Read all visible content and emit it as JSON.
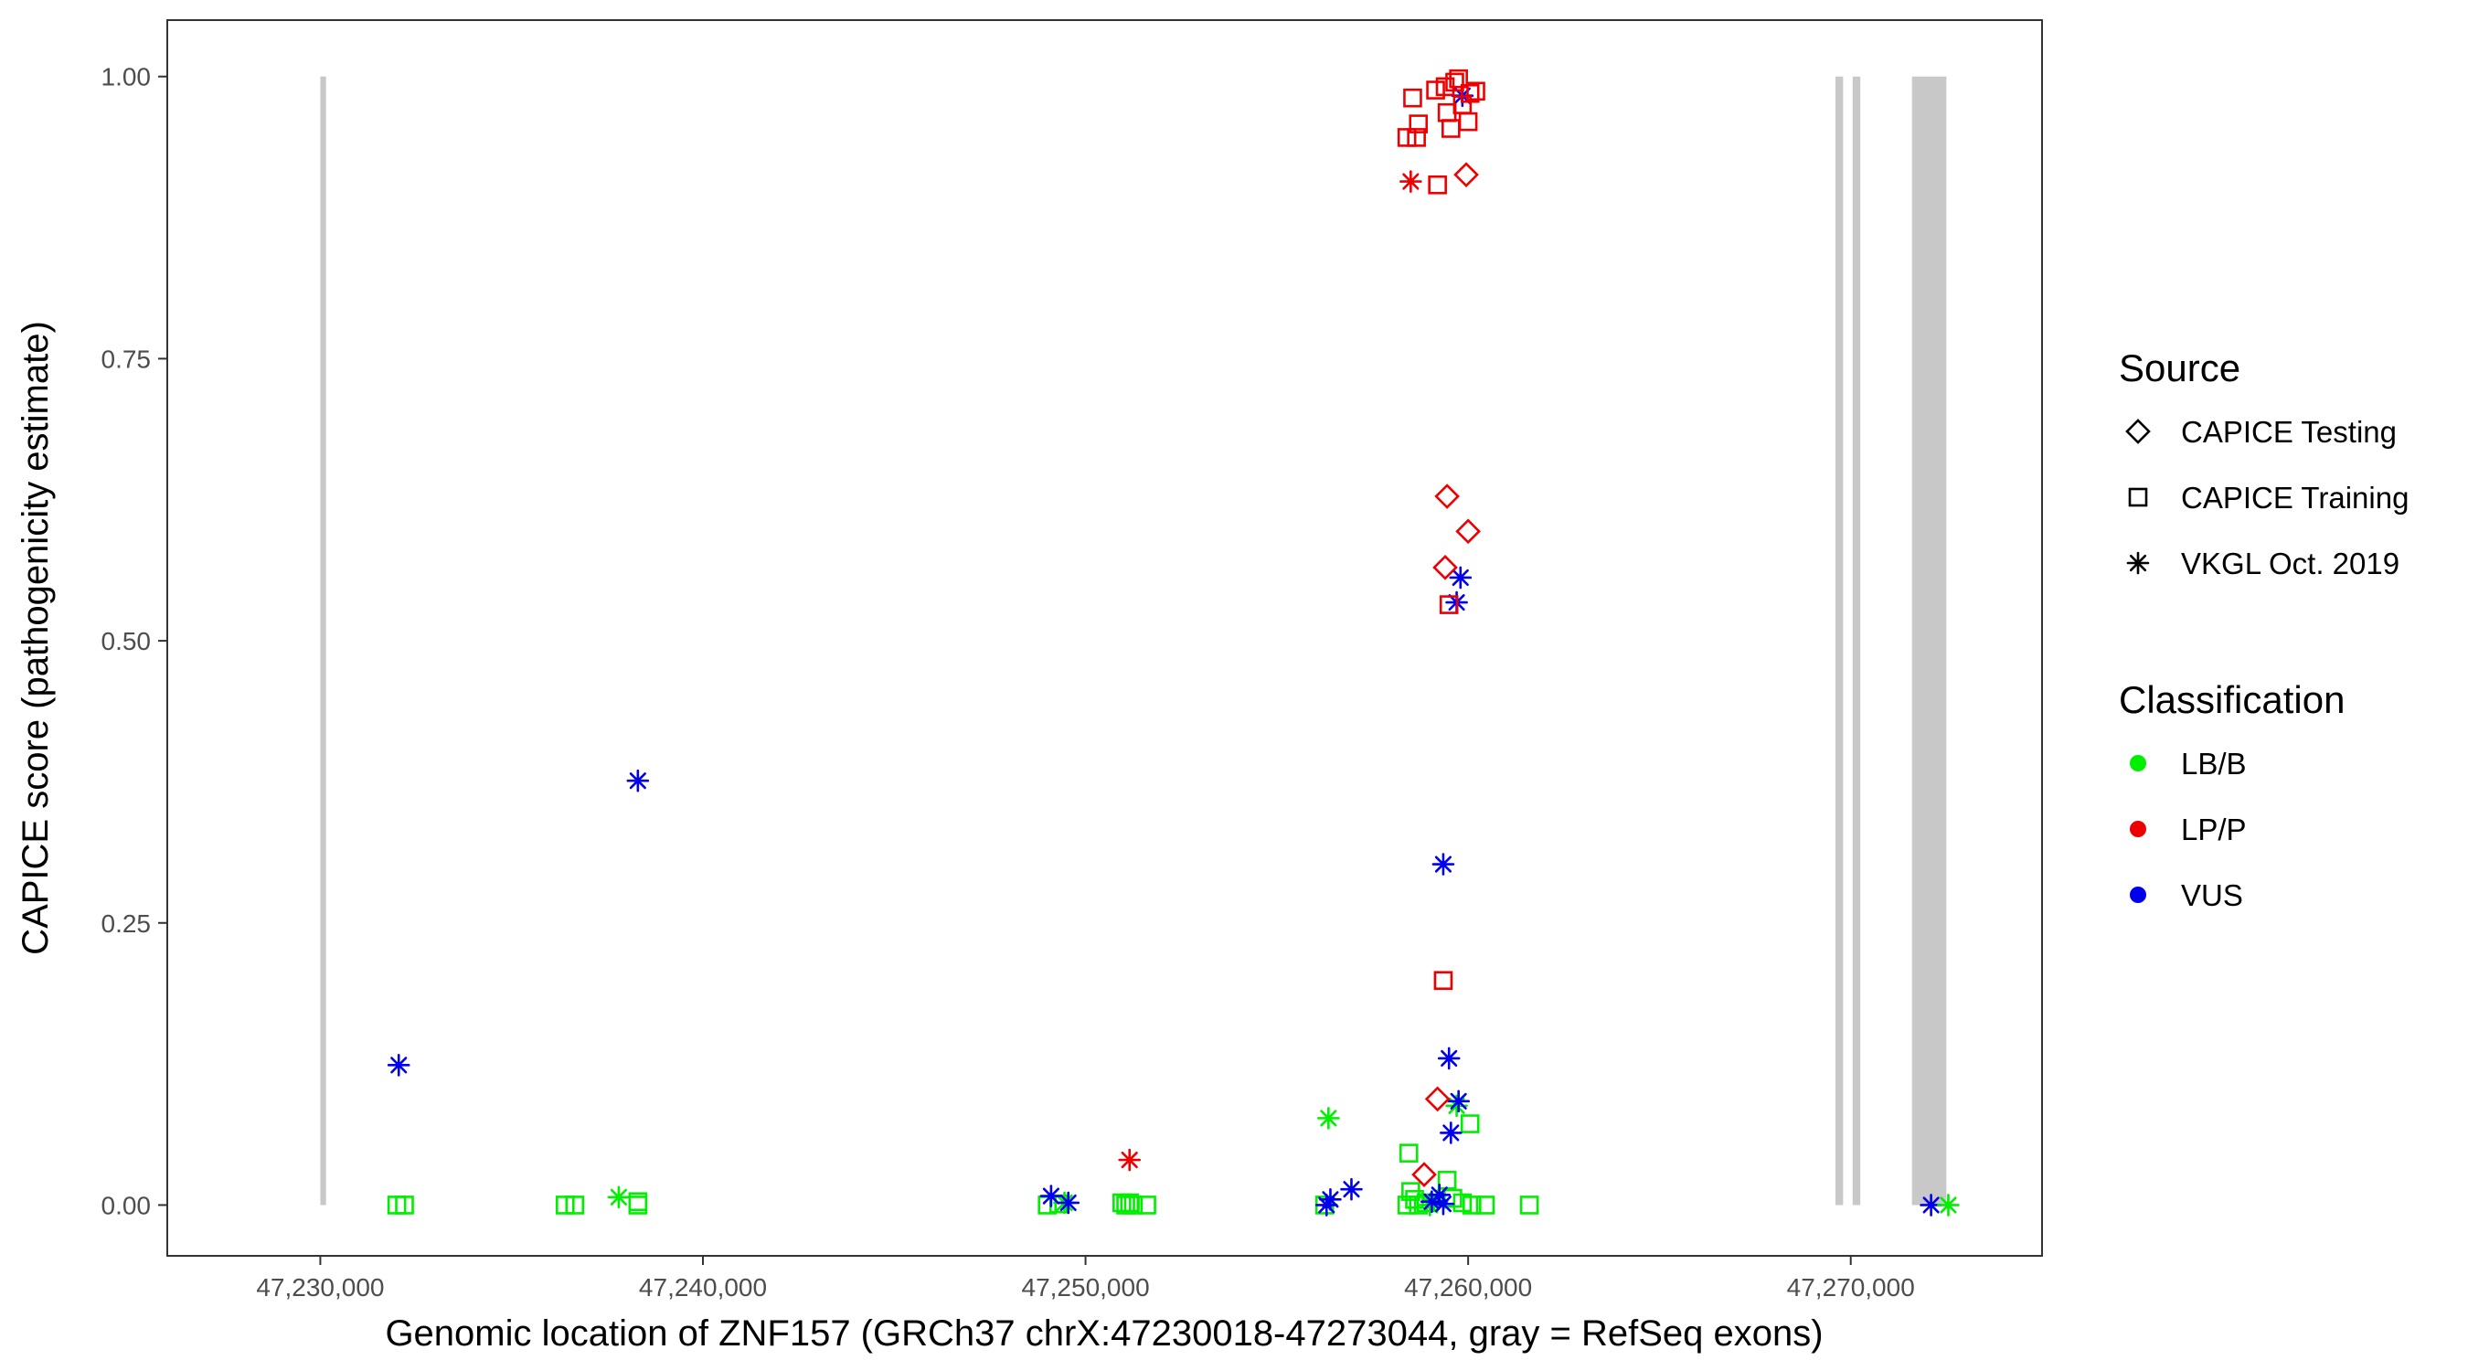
{
  "chart_data": {
    "type": "scatter",
    "xlabel": "Genomic location of ZNF157 (GRCh37 chrX:47230018-47273044, gray = RefSeq exons)",
    "ylabel": "CAPICE score (pathogenicity estimate)",
    "xlim": [
      47226000,
      47275000
    ],
    "ylim": [
      -0.045,
      1.05
    ],
    "x_ticks": [
      47230000,
      47240000,
      47250000,
      47260000,
      47270000
    ],
    "x_tick_labels": [
      "47,230,000",
      "47,240,000",
      "47,250,000",
      "47,260,000",
      "47,270,000"
    ],
    "y_ticks": [
      0,
      0.25,
      0.5,
      0.75,
      1
    ],
    "y_tick_labels": [
      "0.00",
      "0.25",
      "0.50",
      "0.75",
      "1.00"
    ],
    "grid": false,
    "exons": [
      [
        47230000,
        47230150
      ],
      [
        47269600,
        47269800
      ],
      [
        47270050,
        47270250
      ],
      [
        47271600,
        47272500
      ]
    ],
    "exon_range": [
      0,
      1
    ],
    "exon_color": "#c8c8c8",
    "classification_colors": {
      "LB/B": "#00ee00",
      "LP/P": "#ee0000",
      "VUS": "#0000ee"
    },
    "legend": {
      "position": "right",
      "source_title": "Source",
      "source_items": [
        {
          "label": "CAPICE Testing",
          "shape": "diamond"
        },
        {
          "label": "CAPICE Training",
          "shape": "square"
        },
        {
          "label": "VKGL Oct. 2019",
          "shape": "asterisk"
        }
      ],
      "class_title": "Classification",
      "class_items": [
        {
          "label": "LB/B",
          "color": "#00ee00"
        },
        {
          "label": "LP/P",
          "color": "#ee0000"
        },
        {
          "label": "VUS",
          "color": "#0000ee"
        }
      ]
    },
    "points": [
      {
        "x": 47232000,
        "y": 0.0,
        "source": "CAPICE Training",
        "class": "LB/B"
      },
      {
        "x": 47232200,
        "y": 0.0,
        "source": "CAPICE Training",
        "class": "LB/B"
      },
      {
        "x": 47232050,
        "y": 0.124,
        "source": "VKGL Oct. 2019",
        "class": "VUS"
      },
      {
        "x": 47236400,
        "y": 0.0,
        "source": "CAPICE Training",
        "class": "LB/B"
      },
      {
        "x": 47236650,
        "y": 0.0,
        "source": "CAPICE Training",
        "class": "LB/B"
      },
      {
        "x": 47237800,
        "y": 0.007,
        "source": "VKGL Oct. 2019",
        "class": "LB/B"
      },
      {
        "x": 47238300,
        "y": 0.003,
        "source": "CAPICE Training",
        "class": "LB/B"
      },
      {
        "x": 47238300,
        "y": 0.0,
        "source": "CAPICE Training",
        "class": "LB/B"
      },
      {
        "x": 47238300,
        "y": 0.376,
        "source": "VKGL Oct. 2019",
        "class": "VUS"
      },
      {
        "x": 47249000,
        "y": 0.0,
        "source": "CAPICE Training",
        "class": "LB/B"
      },
      {
        "x": 47249300,
        "y": 0.001,
        "source": "CAPICE Training",
        "class": "LB/B"
      },
      {
        "x": 47249450,
        "y": 0.002,
        "source": "VKGL Oct. 2019",
        "class": "LB/B"
      },
      {
        "x": 47249100,
        "y": 0.008,
        "source": "VKGL Oct. 2019",
        "class": "VUS"
      },
      {
        "x": 47249550,
        "y": 0.002,
        "source": "VKGL Oct. 2019",
        "class": "VUS"
      },
      {
        "x": 47250950,
        "y": 0.002,
        "source": "CAPICE Training",
        "class": "LB/B"
      },
      {
        "x": 47251050,
        "y": 0.0,
        "source": "CAPICE Training",
        "class": "LB/B"
      },
      {
        "x": 47251150,
        "y": 0.002,
        "source": "CAPICE Training",
        "class": "LB/B"
      },
      {
        "x": 47251250,
        "y": 0.0,
        "source": "CAPICE Training",
        "class": "LB/B"
      },
      {
        "x": 47251600,
        "y": 0.0,
        "source": "CAPICE Training",
        "class": "LB/B"
      },
      {
        "x": 47251150,
        "y": 0.04,
        "source": "VKGL Oct. 2019",
        "class": "LP/P"
      },
      {
        "x": 47256350,
        "y": 0.077,
        "source": "VKGL Oct. 2019",
        "class": "LB/B"
      },
      {
        "x": 47256250,
        "y": 0.0,
        "source": "CAPICE Training",
        "class": "LB/B"
      },
      {
        "x": 47256400,
        "y": 0.005,
        "source": "VKGL Oct. 2019",
        "class": "VUS"
      },
      {
        "x": 47256300,
        "y": 0.0,
        "source": "VKGL Oct. 2019",
        "class": "VUS"
      },
      {
        "x": 47256950,
        "y": 0.014,
        "source": "VKGL Oct. 2019",
        "class": "VUS"
      },
      {
        "x": 47258450,
        "y": 0.046,
        "source": "CAPICE Training",
        "class": "LB/B"
      },
      {
        "x": 47258500,
        "y": 0.012,
        "source": "CAPICE Training",
        "class": "LB/B"
      },
      {
        "x": 47258600,
        "y": 0.005,
        "source": "CAPICE Training",
        "class": "LB/B"
      },
      {
        "x": 47258400,
        "y": 0.0,
        "source": "CAPICE Training",
        "class": "LB/B"
      },
      {
        "x": 47258700,
        "y": 0.0,
        "source": "CAPICE Training",
        "class": "LB/B"
      },
      {
        "x": 47258900,
        "y": 0.002,
        "source": "CAPICE Training",
        "class": "LB/B"
      },
      {
        "x": 47259000,
        "y": 0.0,
        "source": "VKGL Oct. 2019",
        "class": "LB/B"
      },
      {
        "x": 47259200,
        "y": 0.004,
        "source": "VKGL Oct. 2019",
        "class": "LB/B"
      },
      {
        "x": 47259450,
        "y": 0.022,
        "source": "CAPICE Training",
        "class": "LB/B"
      },
      {
        "x": 47259600,
        "y": 0.006,
        "source": "CAPICE Training",
        "class": "LB/B"
      },
      {
        "x": 47259700,
        "y": 0.088,
        "source": "VKGL Oct. 2019",
        "class": "LB/B"
      },
      {
        "x": 47259850,
        "y": 0.002,
        "source": "CAPICE Training",
        "class": "LB/B"
      },
      {
        "x": 47260050,
        "y": 0.072,
        "source": "CAPICE Training",
        "class": "LB/B"
      },
      {
        "x": 47260100,
        "y": 0.0,
        "source": "CAPICE Training",
        "class": "LB/B"
      },
      {
        "x": 47260450,
        "y": 0.0,
        "source": "CAPICE Training",
        "class": "LB/B"
      },
      {
        "x": 47261600,
        "y": 0.0,
        "source": "CAPICE Training",
        "class": "LB/B"
      },
      {
        "x": 47259050,
        "y": 0.003,
        "source": "VKGL Oct. 2019",
        "class": "VUS"
      },
      {
        "x": 47259250,
        "y": 0.009,
        "source": "VKGL Oct. 2019",
        "class": "VUS"
      },
      {
        "x": 47259350,
        "y": 0.001,
        "source": "VKGL Oct. 2019",
        "class": "VUS"
      },
      {
        "x": 47259550,
        "y": 0.064,
        "source": "VKGL Oct. 2019",
        "class": "VUS"
      },
      {
        "x": 47259750,
        "y": 0.092,
        "source": "VKGL Oct. 2019",
        "class": "VUS"
      },
      {
        "x": 47259500,
        "y": 0.13,
        "source": "VKGL Oct. 2019",
        "class": "VUS"
      },
      {
        "x": 47259350,
        "y": 0.302,
        "source": "VKGL Oct. 2019",
        "class": "VUS"
      },
      {
        "x": 47259700,
        "y": 0.534,
        "source": "VKGL Oct. 2019",
        "class": "VUS"
      },
      {
        "x": 47259800,
        "y": 0.556,
        "source": "VKGL Oct. 2019",
        "class": "VUS"
      },
      {
        "x": 47259850,
        "y": 0.983,
        "source": "VKGL Oct. 2019",
        "class": "VUS"
      },
      {
        "x": 47258850,
        "y": 0.027,
        "source": "CAPICE Testing",
        "class": "LP/P"
      },
      {
        "x": 47259200,
        "y": 0.094,
        "source": "CAPICE Testing",
        "class": "LP/P"
      },
      {
        "x": 47259350,
        "y": 0.199,
        "source": "CAPICE Training",
        "class": "LP/P"
      },
      {
        "x": 47259500,
        "y": 0.532,
        "source": "CAPICE Training",
        "class": "LP/P"
      },
      {
        "x": 47259400,
        "y": 0.565,
        "source": "CAPICE Testing",
        "class": "LP/P"
      },
      {
        "x": 47259450,
        "y": 0.628,
        "source": "CAPICE Testing",
        "class": "LP/P"
      },
      {
        "x": 47260000,
        "y": 0.597,
        "source": "CAPICE Testing",
        "class": "LP/P"
      },
      {
        "x": 47258500,
        "y": 0.907,
        "source": "VKGL Oct. 2019",
        "class": "LP/P"
      },
      {
        "x": 47259200,
        "y": 0.904,
        "source": "CAPICE Training",
        "class": "LP/P"
      },
      {
        "x": 47259950,
        "y": 0.913,
        "source": "CAPICE Testing",
        "class": "LP/P"
      },
      {
        "x": 47258400,
        "y": 0.946,
        "source": "CAPICE Training",
        "class": "LP/P"
      },
      {
        "x": 47258650,
        "y": 0.946,
        "source": "CAPICE Training",
        "class": "LP/P"
      },
      {
        "x": 47258700,
        "y": 0.958,
        "source": "CAPICE Training",
        "class": "LP/P"
      },
      {
        "x": 47258550,
        "y": 0.981,
        "source": "CAPICE Training",
        "class": "LP/P"
      },
      {
        "x": 47259150,
        "y": 0.988,
        "source": "CAPICE Training",
        "class": "LP/P"
      },
      {
        "x": 47259450,
        "y": 0.968,
        "source": "CAPICE Training",
        "class": "LP/P"
      },
      {
        "x": 47259550,
        "y": 0.954,
        "source": "CAPICE Training",
        "class": "LP/P"
      },
      {
        "x": 47259400,
        "y": 0.991,
        "source": "CAPICE Training",
        "class": "LP/P"
      },
      {
        "x": 47259650,
        "y": 0.995,
        "source": "CAPICE Training",
        "class": "LP/P"
      },
      {
        "x": 47259750,
        "y": 0.998,
        "source": "CAPICE Training",
        "class": "LP/P"
      },
      {
        "x": 47259850,
        "y": 0.975,
        "source": "CAPICE Training",
        "class": "LP/P"
      },
      {
        "x": 47260000,
        "y": 0.96,
        "source": "CAPICE Training",
        "class": "LP/P"
      },
      {
        "x": 47260050,
        "y": 0.985,
        "source": "CAPICE Training",
        "class": "LP/P"
      },
      {
        "x": 47260200,
        "y": 0.987,
        "source": "CAPICE Training",
        "class": "LP/P"
      },
      {
        "x": 47272100,
        "y": 0.0,
        "source": "VKGL Oct. 2019",
        "class": "VUS"
      },
      {
        "x": 47272550,
        "y": 0.0,
        "source": "VKGL Oct. 2019",
        "class": "LB/B"
      }
    ]
  }
}
